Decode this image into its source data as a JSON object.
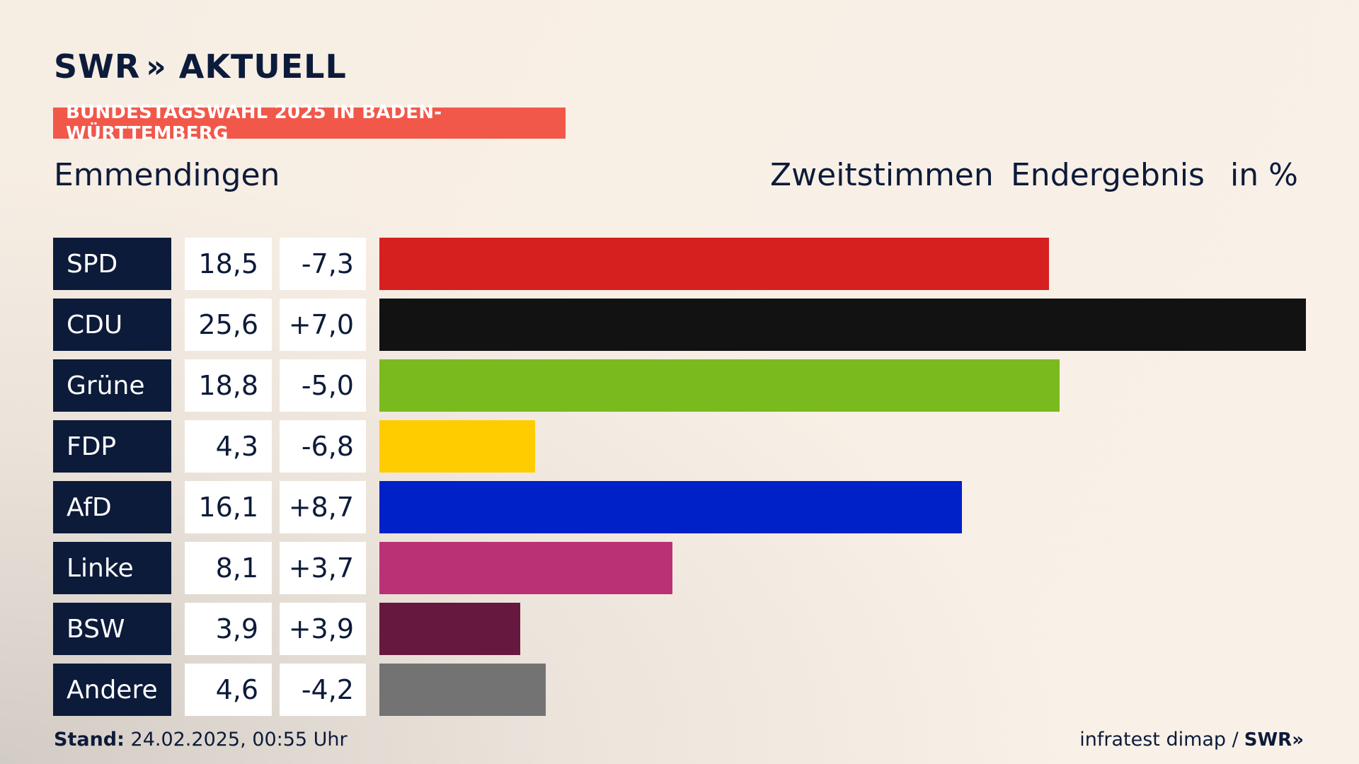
{
  "header": {
    "logo_text": "SWR",
    "logo_chevron": "»",
    "logo_suffix": "AKTUELL",
    "tag": "BUNDESTAGSWAHL 2025 IN BADEN-WÜRTTEMBERG",
    "region": "Emmendingen",
    "col_vote": "Zweitstimmen",
    "col_result": "Endergebnis",
    "col_unit": "in %"
  },
  "chart_data": {
    "type": "bar",
    "orientation": "horizontal",
    "categories": [
      "SPD",
      "CDU",
      "Grüne",
      "FDP",
      "AfD",
      "Linke",
      "BSW",
      "Andere"
    ],
    "values": [
      18.5,
      25.6,
      18.8,
      4.3,
      16.1,
      8.1,
      3.9,
      4.6
    ],
    "value_labels": [
      "18,5",
      "25,6",
      "18,8",
      "4,3",
      "16,1",
      "8,1",
      "3,9",
      "4,6"
    ],
    "diff_labels": [
      "-7,3",
      "+7,0",
      "-5,0",
      "-6,8",
      "+8,7",
      "+3,7",
      "+3,9",
      "-4,2"
    ],
    "colors": [
      "#d61f1f",
      "#121212",
      "#7aba1e",
      "#ffcc00",
      "#0020c8",
      "#bb3176",
      "#66183e",
      "#737373"
    ],
    "xlim": [
      0,
      25.6
    ],
    "grid": false,
    "legend": "none"
  },
  "footer": {
    "stand_label": "Stand:",
    "stand_value": "24.02.2025, 00:55 Uhr",
    "source": "infratest dimap /",
    "source_logo": "SWR»"
  }
}
